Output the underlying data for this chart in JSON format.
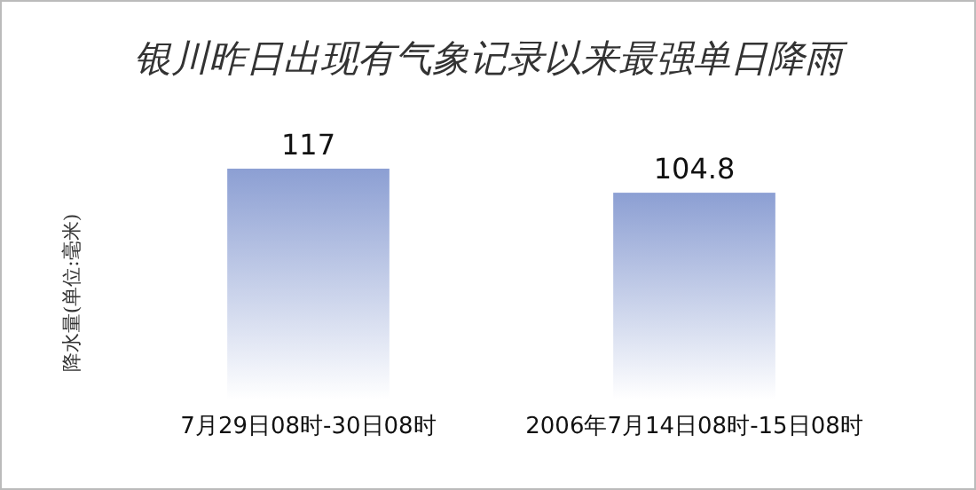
{
  "chart_data": {
    "type": "bar",
    "title": "银川昨日出现有气象记录以来最强单日降雨",
    "ylabel": "降水量(单位:毫米)",
    "categories": [
      "7月29日08时-30日08时",
      "2006年7月14日08时-15日08时"
    ],
    "values": [
      117,
      104.8
    ],
    "color": "#8c9fd3",
    "data_labels": true
  }
}
